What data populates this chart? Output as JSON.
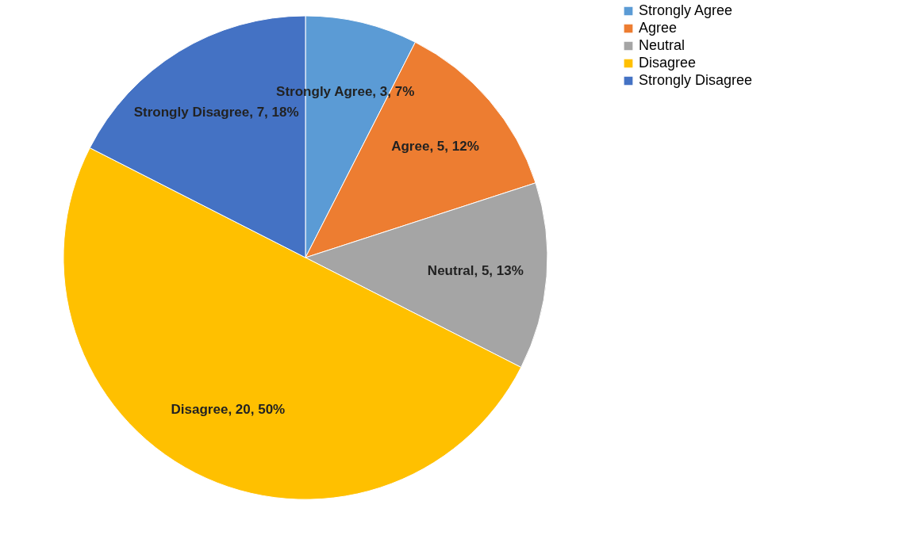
{
  "chart_data": {
    "type": "pie",
    "categories": [
      "Strongly Agree",
      "Agree",
      "Neutral",
      "Disagree",
      "Strongly Disagree"
    ],
    "values": [
      3,
      5,
      5,
      20,
      7
    ],
    "colors": [
      "#5b9bd5",
      "#ed7d31",
      "#a5a5a5",
      "#ffc000",
      "#4472c4"
    ],
    "value_labels": [
      "Strongly Agree, 3, 7%",
      "Agree, 5, 12%",
      "Neutral, 5, 13%",
      "Disagree, 20, 50%",
      "Strongly Disagree, 7, 18%"
    ],
    "legend": "right"
  }
}
